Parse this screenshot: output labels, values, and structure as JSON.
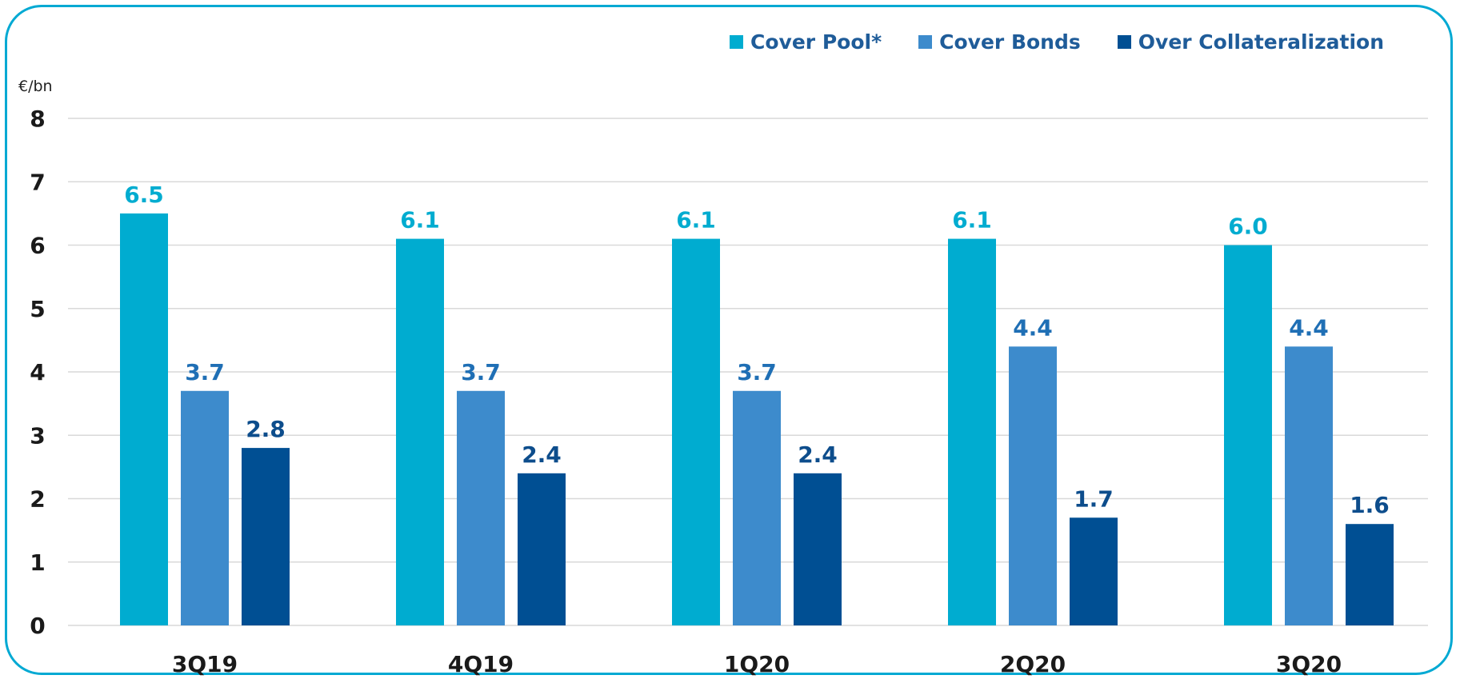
{
  "chart_data": {
    "type": "bar",
    "unit_label": "€/bn",
    "categories": [
      "3Q19",
      "4Q19",
      "1Q20",
      "2Q20",
      "3Q20"
    ],
    "series": [
      {
        "name": "Cover Pool*",
        "color": "#00acd0",
        "label_color": "#00acd0",
        "values": [
          6.5,
          6.1,
          6.1,
          6.1,
          6.0
        ]
      },
      {
        "name": "Cover Bonds",
        "color": "#3d8bcc",
        "label_color": "#1f6fb5",
        "values": [
          3.7,
          3.7,
          3.7,
          4.4,
          4.4
        ]
      },
      {
        "name": "Over Collateralization",
        "color": "#004f93",
        "label_color": "#0d4d8c",
        "values": [
          2.8,
          2.4,
          2.4,
          1.7,
          1.6
        ]
      }
    ],
    "value_labels": [
      [
        "6.5",
        "6.1",
        "6.1",
        "6.1",
        "6.0"
      ],
      [
        "3.7",
        "3.7",
        "3.7",
        "4.4",
        "4.4"
      ],
      [
        "2.8",
        "2.4",
        "2.4",
        "1.7",
        "1.6"
      ]
    ],
    "yticks": [
      "0",
      "1",
      "2",
      "3",
      "4",
      "5",
      "6",
      "7",
      "8"
    ],
    "ylim": [
      0,
      8
    ],
    "grid": true,
    "legend_position": "top-right",
    "frame_color": "#00a9d3",
    "grid_color": "#d9d9d9"
  }
}
